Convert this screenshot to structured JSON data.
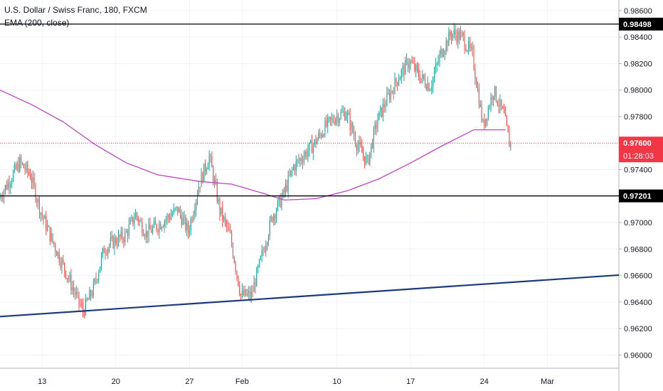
{
  "legend": {
    "title": "U.S. Dollar / Swiss Franc, 180, FXCM",
    "indicator": "EMA (200, close)"
  },
  "chart_data": {
    "type": "candlestick",
    "ylim": [
      0.959,
      0.9868
    ],
    "y_ticks": [
      "0.96000",
      "0.96200",
      "0.96400",
      "0.96600",
      "0.96800",
      "0.97000",
      "0.97200",
      "0.97400",
      "0.97600",
      "0.97800",
      "0.98000",
      "0.98200",
      "0.98400",
      "0.98600"
    ],
    "x_ticks": [
      "13",
      "20",
      "27",
      "Feb",
      "10",
      "17",
      "24",
      "Mar"
    ],
    "horizontal_lines": [
      {
        "label": "0.98498",
        "value": 0.98498,
        "color": "#000000"
      },
      {
        "label": "0.97201",
        "value": 0.97201,
        "color": "#000000"
      }
    ],
    "current_price": {
      "label": "0.97600",
      "value": 0.976,
      "color": "#f23645",
      "countdown": "01:28:03"
    },
    "trendline": {
      "start": {
        "x": "Jan 9",
        "y": 0.9629
      },
      "end": {
        "x": "Feb 29",
        "y": 0.96562
      },
      "color": "#1c3a7a"
    },
    "ema_color": "#c042c8",
    "up_color": "#26a69a",
    "down_color": "#ef5350",
    "key_points": [
      {
        "x": "Jan 9",
        "y": 0.9718
      },
      {
        "x": "Jan 11",
        "y": 0.9745
      },
      {
        "x": "Jan 12",
        "y": 0.9736
      },
      {
        "x": "Jan 13",
        "y": 0.9708
      },
      {
        "x": "Jan 14",
        "y": 0.9688
      },
      {
        "x": "Jan 16",
        "y": 0.9651
      },
      {
        "x": "Jan 17",
        "y": 0.9633
      },
      {
        "x": "Jan 18",
        "y": 0.965
      },
      {
        "x": "Jan 19",
        "y": 0.968
      },
      {
        "x": "Jan 20",
        "y": 0.9686
      },
      {
        "x": "Jan 21",
        "y": 0.969
      },
      {
        "x": "Jan 22",
        "y": 0.9706
      },
      {
        "x": "Jan 23",
        "y": 0.9692
      },
      {
        "x": "Jan 24",
        "y": 0.9697
      },
      {
        "x": "Jan 26",
        "y": 0.971
      },
      {
        "x": "Jan 27",
        "y": 0.9693
      },
      {
        "x": "Jan 28",
        "y": 0.9728
      },
      {
        "x": "Jan 29",
        "y": 0.975
      },
      {
        "x": "Jan 30",
        "y": 0.9709
      },
      {
        "x": "Jan 31",
        "y": 0.9689
      },
      {
        "x": "Feb 1",
        "y": 0.9645
      },
      {
        "x": "Feb 2",
        "y": 0.9645
      },
      {
        "x": "Feb 3",
        "y": 0.9675
      },
      {
        "x": "Feb 4",
        "y": 0.9705
      },
      {
        "x": "Feb 5",
        "y": 0.972
      },
      {
        "x": "Feb 6",
        "y": 0.9742
      },
      {
        "x": "Feb 8",
        "y": 0.976
      },
      {
        "x": "Feb 9",
        "y": 0.9772
      },
      {
        "x": "Feb 10",
        "y": 0.978
      },
      {
        "x": "Feb 11",
        "y": 0.9783
      },
      {
        "x": "Feb 12",
        "y": 0.976
      },
      {
        "x": "Feb 13",
        "y": 0.9745
      },
      {
        "x": "Feb 14",
        "y": 0.9778
      },
      {
        "x": "Feb 15",
        "y": 0.9795
      },
      {
        "x": "Feb 16",
        "y": 0.981
      },
      {
        "x": "Feb 17",
        "y": 0.9822
      },
      {
        "x": "Feb 18",
        "y": 0.981
      },
      {
        "x": "Feb 19",
        "y": 0.9803
      },
      {
        "x": "Feb 20",
        "y": 0.9828
      },
      {
        "x": "Feb 21",
        "y": 0.9843
      },
      {
        "x": "Feb 22",
        "y": 0.984
      },
      {
        "x": "Feb 23",
        "y": 0.9826
      },
      {
        "x": "Feb 24",
        "y": 0.9773
      },
      {
        "x": "Feb 25",
        "y": 0.98
      },
      {
        "x": "Feb 26",
        "y": 0.978
      },
      {
        "x": "Feb 26.5",
        "y": 0.976
      }
    ],
    "ema_points": [
      {
        "x": "Jan 9",
        "y": 0.98
      },
      {
        "x": "Jan 12",
        "y": 0.9789
      },
      {
        "x": "Jan 15",
        "y": 0.9776
      },
      {
        "x": "Jan 18",
        "y": 0.9759
      },
      {
        "x": "Jan 21",
        "y": 0.9745
      },
      {
        "x": "Jan 24",
        "y": 0.9736
      },
      {
        "x": "Jan 28",
        "y": 0.9731
      },
      {
        "x": "Jan 31",
        "y": 0.9729
      },
      {
        "x": "Feb 3",
        "y": 0.9722
      },
      {
        "x": "Feb 5",
        "y": 0.9717
      },
      {
        "x": "Feb 8",
        "y": 0.9718
      },
      {
        "x": "Feb 11",
        "y": 0.9724
      },
      {
        "x": "Feb 14",
        "y": 0.9733
      },
      {
        "x": "Feb 17",
        "y": 0.9745
      },
      {
        "x": "Feb 20",
        "y": 0.9758
      },
      {
        "x": "Feb 23",
        "y": 0.977
      },
      {
        "x": "Feb 26",
        "y": 0.977
      }
    ]
  }
}
